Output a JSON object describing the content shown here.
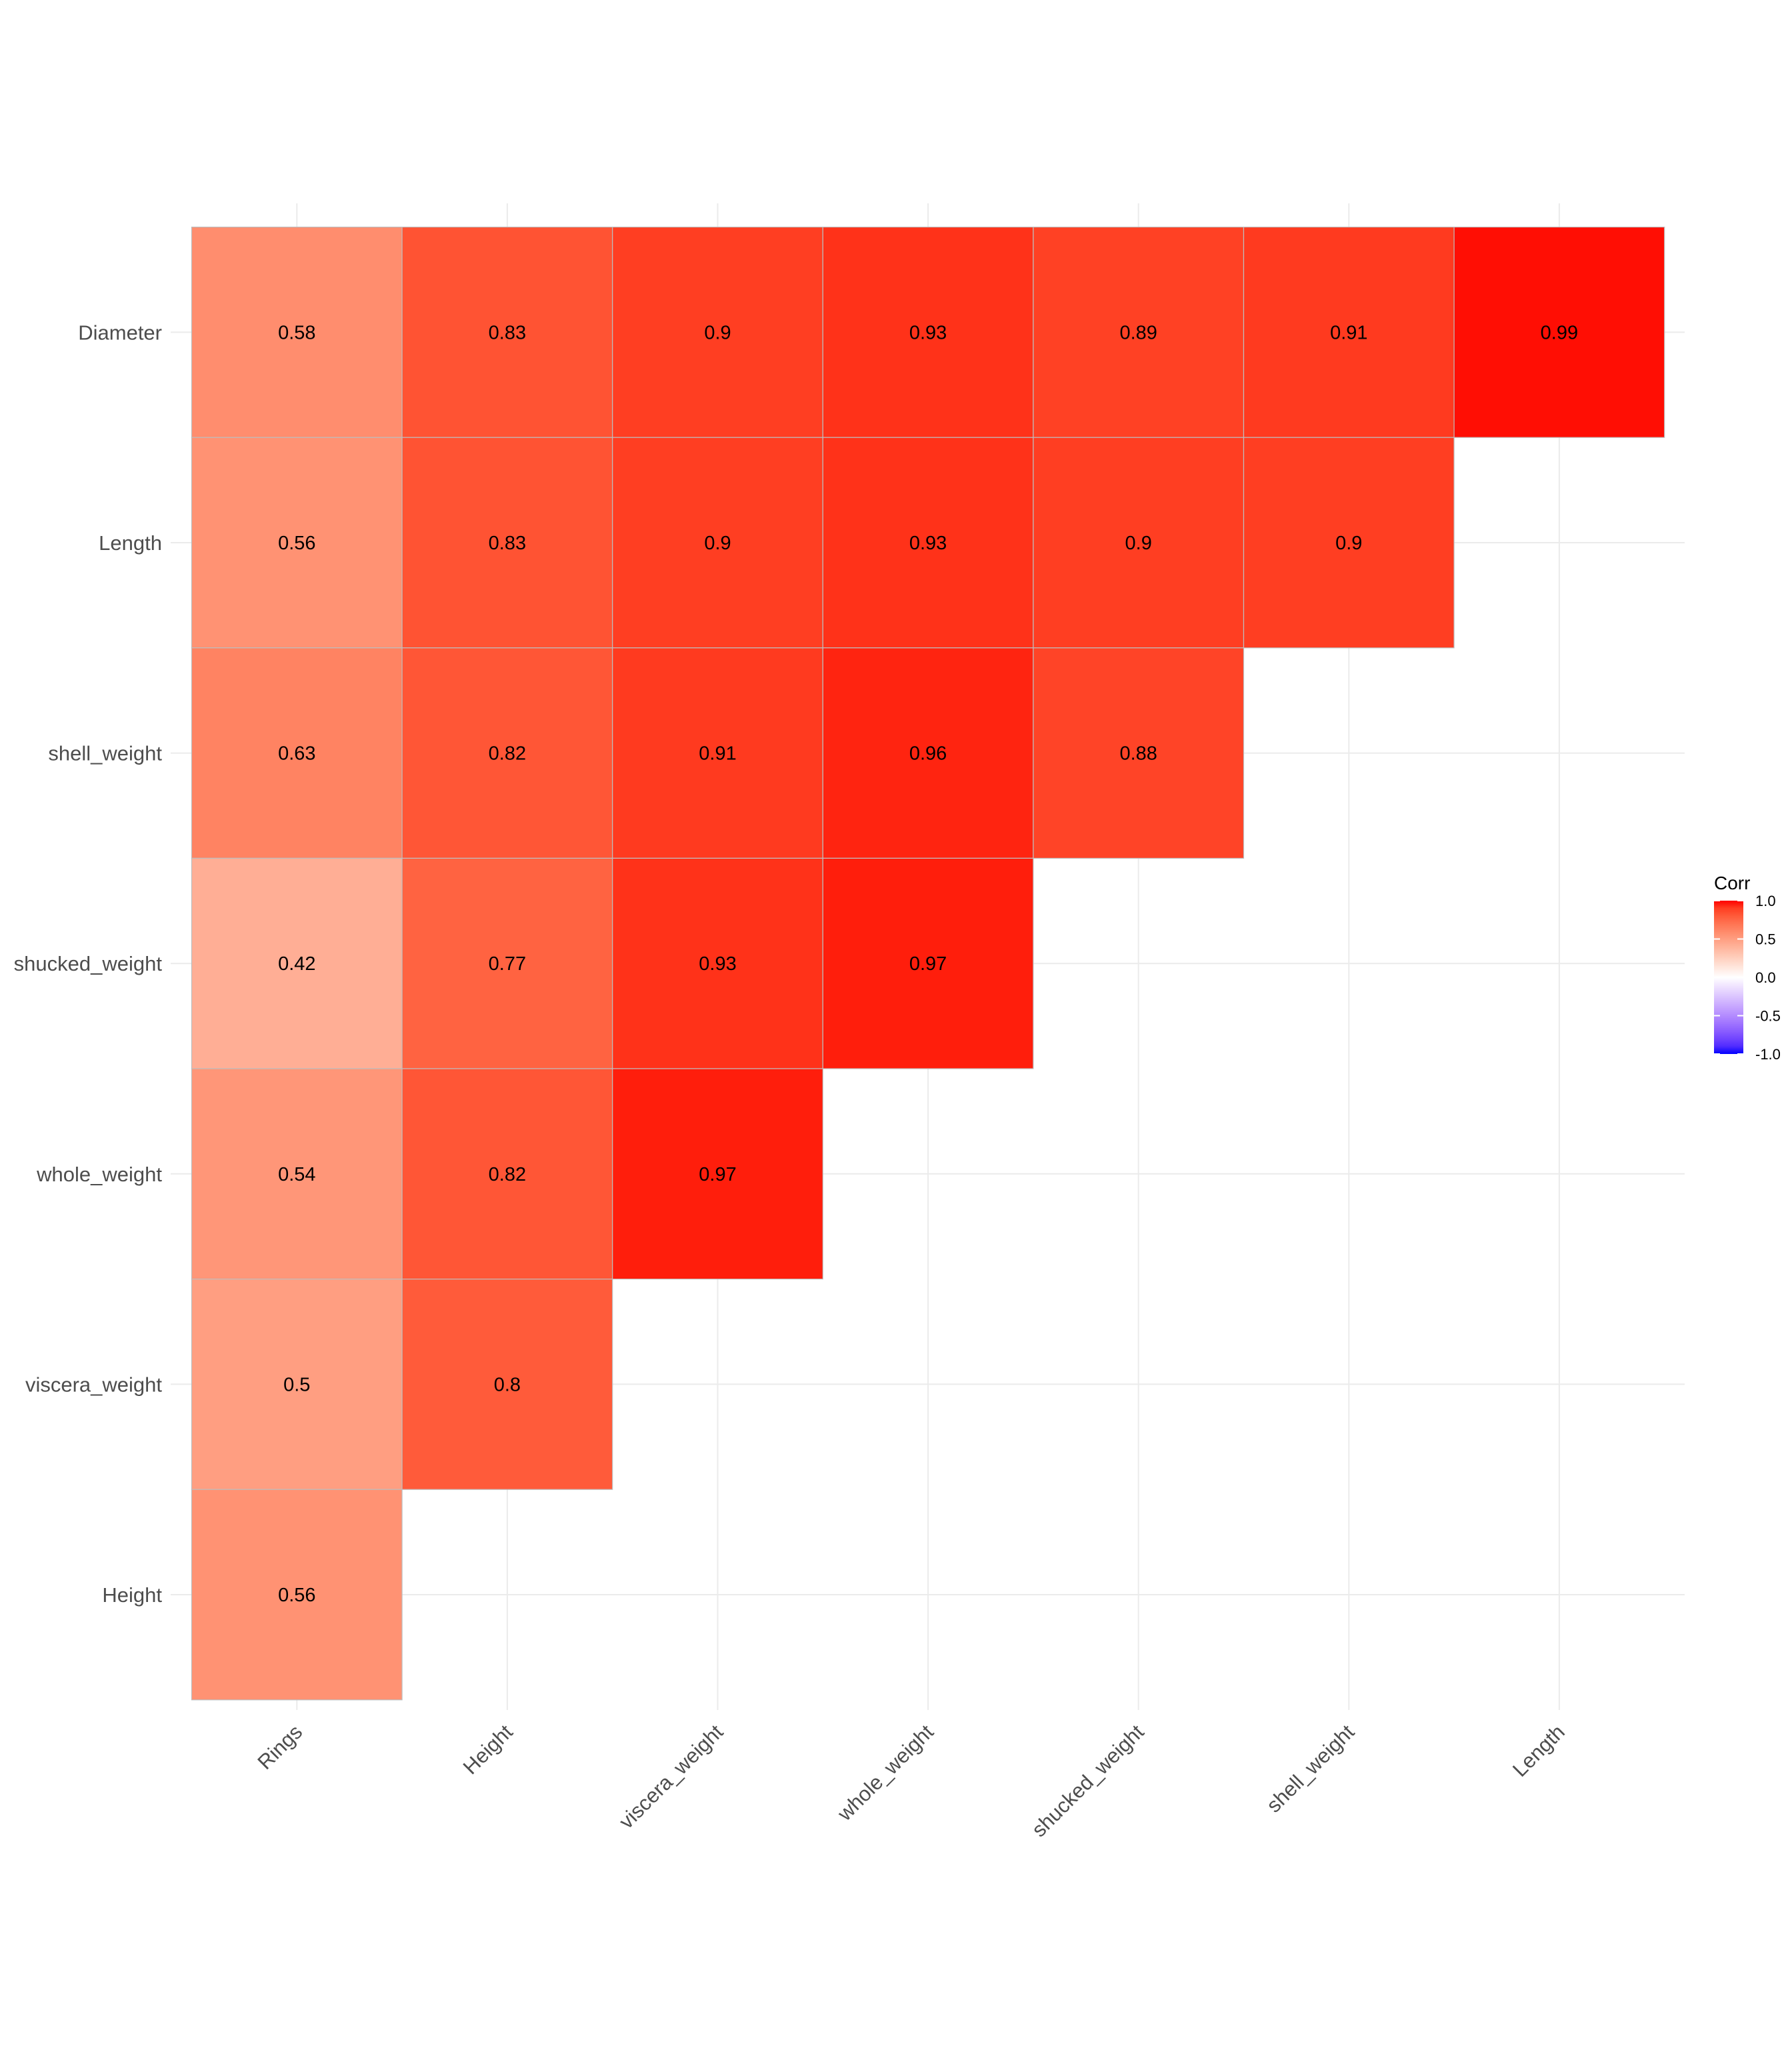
{
  "chart_data": {
    "type": "heatmap",
    "title": "",
    "xlabel": "",
    "ylabel": "",
    "x_categories": [
      "Rings",
      "Height",
      "viscera_weight",
      "whole_weight",
      "shucked_weight",
      "shell_weight",
      "Length"
    ],
    "y_categories": [
      "Diameter",
      "Length",
      "shell_weight",
      "shucked_weight",
      "whole_weight",
      "viscera_weight",
      "Height"
    ],
    "values": [
      [
        0.58,
        0.83,
        0.9,
        0.93,
        0.89,
        0.91,
        0.99
      ],
      [
        0.56,
        0.83,
        0.9,
        0.93,
        0.9,
        0.9
      ],
      [
        0.63,
        0.82,
        0.91,
        0.96,
        0.88
      ],
      [
        0.42,
        0.77,
        0.93,
        0.97
      ],
      [
        0.54,
        0.82,
        0.97
      ],
      [
        0.5,
        0.8
      ],
      [
        0.56
      ]
    ],
    "value_labels": [
      [
        "0.58",
        "0.83",
        "0.9",
        "0.93",
        "0.89",
        "0.91",
        "0.99"
      ],
      [
        "0.56",
        "0.83",
        "0.9",
        "0.93",
        "0.9",
        "0.9"
      ],
      [
        "0.63",
        "0.82",
        "0.91",
        "0.96",
        "0.88"
      ],
      [
        "0.42",
        "0.77",
        "0.93",
        "0.97"
      ],
      [
        "0.54",
        "0.82",
        "0.97"
      ],
      [
        "0.5",
        "0.8"
      ],
      [
        "0.56"
      ]
    ],
    "legend": {
      "title": "Corr",
      "position": "right",
      "range": [
        -1,
        1
      ],
      "ticks": [
        "1.0",
        "0.5",
        "0.0",
        "-0.5",
        "-1.0"
      ],
      "tick_values": [
        1,
        0.5,
        0,
        -0.5,
        -1
      ],
      "low_color": "#0000FF",
      "mid_color": "#FFFFFF",
      "high_color": "#FF0000"
    },
    "grid": true
  }
}
